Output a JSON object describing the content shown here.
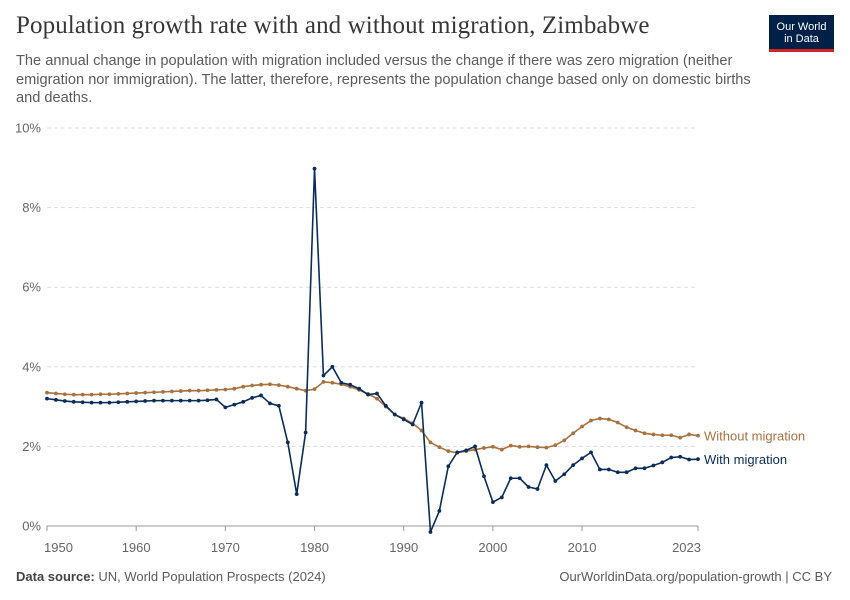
{
  "header": {
    "title": "Population growth rate with and without migration, Zimbabwe",
    "subtitle": "The annual change in population with migration included versus the change if there was zero migration (neither emigration nor immigration). The latter, therefore, represents the population change based only on domestic births and deaths.",
    "logo_line1": "Our World",
    "logo_line2": "in Data"
  },
  "footer": {
    "source_label": "Data source:",
    "source_text": "UN, World Population Prospects (2024)",
    "url": "OurWorldinData.org/population-growth | CC BY"
  },
  "colors": {
    "with_migration": "#0a2d5a",
    "without_migration": "#a7723f",
    "grid": "#dddddd",
    "axis": "#999999",
    "logo_bg": "#002147",
    "logo_accent": "#ce261e"
  },
  "chart_data": {
    "type": "line",
    "title": "Population growth rate with and without migration, Zimbabwe",
    "xlabel": "",
    "ylabel": "",
    "xlim": [
      1950,
      2023
    ],
    "ylim": [
      0,
      10
    ],
    "y_ticks": [
      "0%",
      "2%",
      "4%",
      "6%",
      "8%",
      "10%"
    ],
    "x_ticks": [
      "1950",
      "1960",
      "1970",
      "1980",
      "1990",
      "2000",
      "2010",
      "2023"
    ],
    "grid": "horizontal dashed",
    "legend": "right, inline labels",
    "x": [
      1950,
      1951,
      1952,
      1953,
      1954,
      1955,
      1956,
      1957,
      1958,
      1959,
      1960,
      1961,
      1962,
      1963,
      1964,
      1965,
      1966,
      1967,
      1968,
      1969,
      1970,
      1971,
      1972,
      1973,
      1974,
      1975,
      1976,
      1977,
      1978,
      1979,
      1980,
      1981,
      1982,
      1983,
      1984,
      1985,
      1986,
      1987,
      1988,
      1989,
      1990,
      1991,
      1992,
      1993,
      1994,
      1995,
      1996,
      1997,
      1998,
      1999,
      2000,
      2001,
      2002,
      2003,
      2004,
      2005,
      2006,
      2007,
      2008,
      2009,
      2010,
      2011,
      2012,
      2013,
      2014,
      2015,
      2016,
      2017,
      2018,
      2019,
      2020,
      2021,
      2022,
      2023
    ],
    "series": [
      {
        "name": "Without migration",
        "color": "#a7723f",
        "values": [
          3.35,
          3.33,
          3.31,
          3.3,
          3.3,
          3.3,
          3.31,
          3.31,
          3.32,
          3.33,
          3.34,
          3.35,
          3.36,
          3.37,
          3.38,
          3.39,
          3.4,
          3.4,
          3.41,
          3.42,
          3.43,
          3.45,
          3.5,
          3.53,
          3.55,
          3.56,
          3.54,
          3.5,
          3.45,
          3.4,
          3.44,
          3.62,
          3.6,
          3.56,
          3.5,
          3.42,
          3.32,
          3.2,
          3.0,
          2.8,
          2.7,
          2.58,
          2.4,
          2.1,
          1.98,
          1.88,
          1.84,
          1.88,
          1.92,
          1.96,
          1.99,
          1.92,
          2.02,
          1.99,
          2.0,
          1.98,
          1.97,
          2.03,
          2.15,
          2.33,
          2.5,
          2.65,
          2.7,
          2.68,
          2.6,
          2.48,
          2.4,
          2.33,
          2.3,
          2.28,
          2.28,
          2.22,
          2.3,
          2.27
        ]
      },
      {
        "name": "With migration",
        "color": "#0a2d5a",
        "values": [
          3.2,
          3.17,
          3.14,
          3.12,
          3.11,
          3.1,
          3.1,
          3.1,
          3.11,
          3.12,
          3.13,
          3.14,
          3.15,
          3.15,
          3.15,
          3.15,
          3.15,
          3.15,
          3.16,
          3.18,
          2.98,
          3.05,
          3.12,
          3.22,
          3.28,
          3.08,
          3.02,
          2.1,
          0.8,
          2.35,
          8.98,
          3.78,
          4.0,
          3.6,
          3.55,
          3.45,
          3.3,
          3.33,
          3.02,
          2.8,
          2.68,
          2.55,
          3.1,
          -0.15,
          0.38,
          1.5,
          1.85,
          1.9,
          2.0,
          1.25,
          0.6,
          0.72,
          1.2,
          1.2,
          0.98,
          0.93,
          1.53,
          1.13,
          1.3,
          1.53,
          1.7,
          1.85,
          1.42,
          1.42,
          1.35,
          1.35,
          1.45,
          1.45,
          1.52,
          1.6,
          1.72,
          1.74,
          1.67,
          1.68
        ]
      }
    ]
  }
}
